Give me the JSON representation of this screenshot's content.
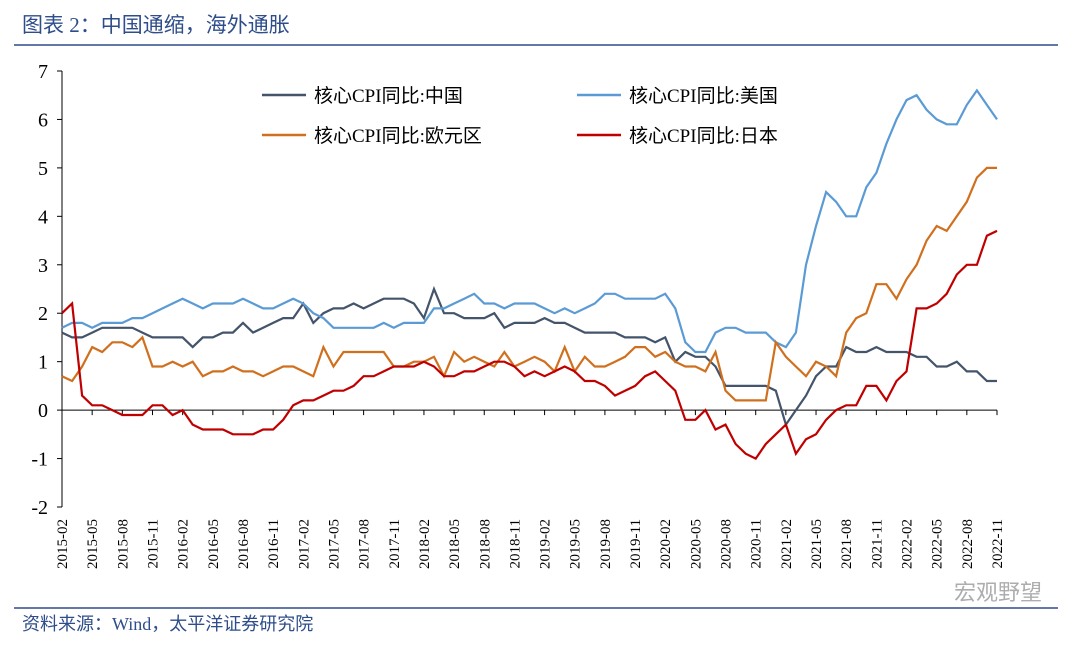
{
  "header": {
    "title": "图表 2：中国通缩，海外通胀"
  },
  "footer": {
    "source": "资料来源：Wind，太平洋证券研究院",
    "watermark": "宏观野望"
  },
  "chart_data": {
    "type": "line",
    "legend": "top",
    "categories": [
      "2015-02",
      null,
      null,
      "2015-05",
      null,
      null,
      "2015-08",
      null,
      null,
      "2015-11",
      null,
      null,
      "2016-02",
      null,
      null,
      "2016-05",
      null,
      null,
      "2016-08",
      null,
      null,
      "2016-11",
      null,
      null,
      "2017-02",
      null,
      null,
      "2017-05",
      null,
      null,
      "2017-08",
      null,
      null,
      "2017-11",
      null,
      null,
      "2018-02",
      null,
      null,
      "2018-05",
      null,
      null,
      "2018-08",
      null,
      null,
      "2018-11",
      null,
      null,
      "2019-02",
      null,
      null,
      "2019-05",
      null,
      null,
      "2019-08",
      null,
      null,
      "2019-11",
      null,
      null,
      "2020-02",
      null,
      null,
      "2020-05",
      null,
      null,
      "2020-08",
      null,
      null,
      "2020-11",
      null,
      null,
      "2021-02",
      null,
      null,
      "2021-05",
      null,
      null,
      "2021-08",
      null,
      null,
      "2021-11",
      null,
      null,
      "2022-02",
      null,
      null,
      "2022-05",
      null,
      null,
      "2022-08",
      null,
      null,
      "2022-11"
    ],
    "ylim": [
      -2,
      7
    ],
    "yticks": [
      -2,
      -1,
      0,
      1,
      2,
      3,
      4,
      5,
      6,
      7
    ],
    "series": [
      {
        "name": "核心CPI同比:中国",
        "color": "#44546a",
        "values": [
          1.6,
          1.5,
          1.5,
          1.6,
          1.7,
          1.7,
          1.7,
          1.7,
          1.6,
          1.5,
          1.5,
          1.5,
          1.5,
          1.3,
          1.5,
          1.5,
          1.6,
          1.6,
          1.8,
          1.6,
          1.7,
          1.8,
          1.9,
          1.9,
          2.2,
          1.8,
          2.0,
          2.1,
          2.1,
          2.2,
          2.1,
          2.2,
          2.3,
          2.3,
          2.3,
          2.2,
          1.9,
          2.5,
          2.0,
          2.0,
          1.9,
          1.9,
          1.9,
          2.0,
          1.7,
          1.8,
          1.8,
          1.8,
          1.9,
          1.8,
          1.8,
          1.7,
          1.6,
          1.6,
          1.6,
          1.6,
          1.5,
          1.5,
          1.5,
          1.4,
          1.5,
          1.0,
          1.2,
          1.1,
          1.1,
          0.9,
          0.5,
          0.5,
          0.5,
          0.5,
          0.5,
          0.4,
          -0.3,
          0.0,
          0.3,
          0.7,
          0.9,
          0.9,
          1.3,
          1.2,
          1.2,
          1.3,
          1.2,
          1.2,
          1.2,
          1.1,
          1.1,
          0.9,
          0.9,
          1.0,
          0.8,
          0.8,
          0.6,
          0.6
        ]
      },
      {
        "name": "核心CPI同比:美国",
        "color": "#5b9bd5",
        "values": [
          1.7,
          1.8,
          1.8,
          1.7,
          1.8,
          1.8,
          1.8,
          1.9,
          1.9,
          2.0,
          2.1,
          2.2,
          2.3,
          2.2,
          2.1,
          2.2,
          2.2,
          2.2,
          2.3,
          2.2,
          2.1,
          2.1,
          2.2,
          2.3,
          2.2,
          2.0,
          1.9,
          1.7,
          1.7,
          1.7,
          1.7,
          1.7,
          1.8,
          1.7,
          1.8,
          1.8,
          1.8,
          2.1,
          2.1,
          2.2,
          2.3,
          2.4,
          2.2,
          2.2,
          2.1,
          2.2,
          2.2,
          2.2,
          2.1,
          2.0,
          2.1,
          2.0,
          2.1,
          2.2,
          2.4,
          2.4,
          2.3,
          2.3,
          2.3,
          2.3,
          2.4,
          2.1,
          1.4,
          1.2,
          1.2,
          1.6,
          1.7,
          1.7,
          1.6,
          1.6,
          1.6,
          1.4,
          1.3,
          1.6,
          3.0,
          3.8,
          4.5,
          4.3,
          4.0,
          4.0,
          4.6,
          4.9,
          5.5,
          6.0,
          6.4,
          6.5,
          6.2,
          6.0,
          5.9,
          5.9,
          6.3,
          6.6,
          6.3,
          6.0
        ]
      },
      {
        "name": "核心CPI同比:欧元区",
        "color": "#d0701e",
        "values": [
          0.7,
          0.6,
          0.9,
          1.3,
          1.2,
          1.4,
          1.4,
          1.3,
          1.5,
          0.9,
          0.9,
          1.0,
          0.9,
          1.0,
          0.7,
          0.8,
          0.8,
          0.9,
          0.8,
          0.8,
          0.7,
          0.8,
          0.9,
          0.9,
          0.8,
          0.7,
          1.3,
          0.9,
          1.2,
          1.2,
          1.2,
          1.2,
          1.2,
          0.9,
          0.9,
          1.0,
          1.0,
          1.1,
          0.7,
          1.2,
          1.0,
          1.1,
          1.0,
          0.9,
          1.2,
          0.9,
          1.0,
          1.1,
          1.0,
          0.8,
          1.3,
          0.8,
          1.1,
          0.9,
          0.9,
          1.0,
          1.1,
          1.3,
          1.3,
          1.1,
          1.2,
          1.0,
          0.9,
          0.9,
          0.8,
          1.2,
          0.4,
          0.2,
          0.2,
          0.2,
          0.2,
          1.4,
          1.1,
          0.9,
          0.7,
          1.0,
          0.9,
          0.7,
          1.6,
          1.9,
          2.0,
          2.6,
          2.6,
          2.3,
          2.7,
          3.0,
          3.5,
          3.8,
          3.7,
          4.0,
          4.3,
          4.8,
          5.0,
          5.0
        ]
      },
      {
        "name": "核心CPI同比:日本",
        "color": "#c00000",
        "values": [
          2.0,
          2.2,
          0.3,
          0.1,
          0.1,
          0.0,
          -0.1,
          -0.1,
          -0.1,
          0.1,
          0.1,
          -0.1,
          0.0,
          -0.3,
          -0.4,
          -0.4,
          -0.4,
          -0.5,
          -0.5,
          -0.5,
          -0.4,
          -0.4,
          -0.2,
          0.1,
          0.2,
          0.2,
          0.3,
          0.4,
          0.4,
          0.5,
          0.7,
          0.7,
          0.8,
          0.9,
          0.9,
          0.9,
          1.0,
          0.9,
          0.7,
          0.7,
          0.8,
          0.8,
          0.9,
          1.0,
          1.0,
          0.9,
          0.7,
          0.8,
          0.7,
          0.8,
          0.9,
          0.8,
          0.6,
          0.6,
          0.5,
          0.3,
          0.4,
          0.5,
          0.7,
          0.8,
          0.6,
          0.4,
          -0.2,
          -0.2,
          0.0,
          -0.4,
          -0.3,
          -0.7,
          -0.9,
          -1.0,
          -0.7,
          -0.5,
          -0.3,
          -0.9,
          -0.6,
          -0.5,
          -0.2,
          0.0,
          0.1,
          0.1,
          0.5,
          0.5,
          0.2,
          0.6,
          0.8,
          2.1,
          2.1,
          2.2,
          2.4,
          2.8,
          3.0,
          3.0,
          3.6,
          3.7
        ]
      }
    ]
  }
}
